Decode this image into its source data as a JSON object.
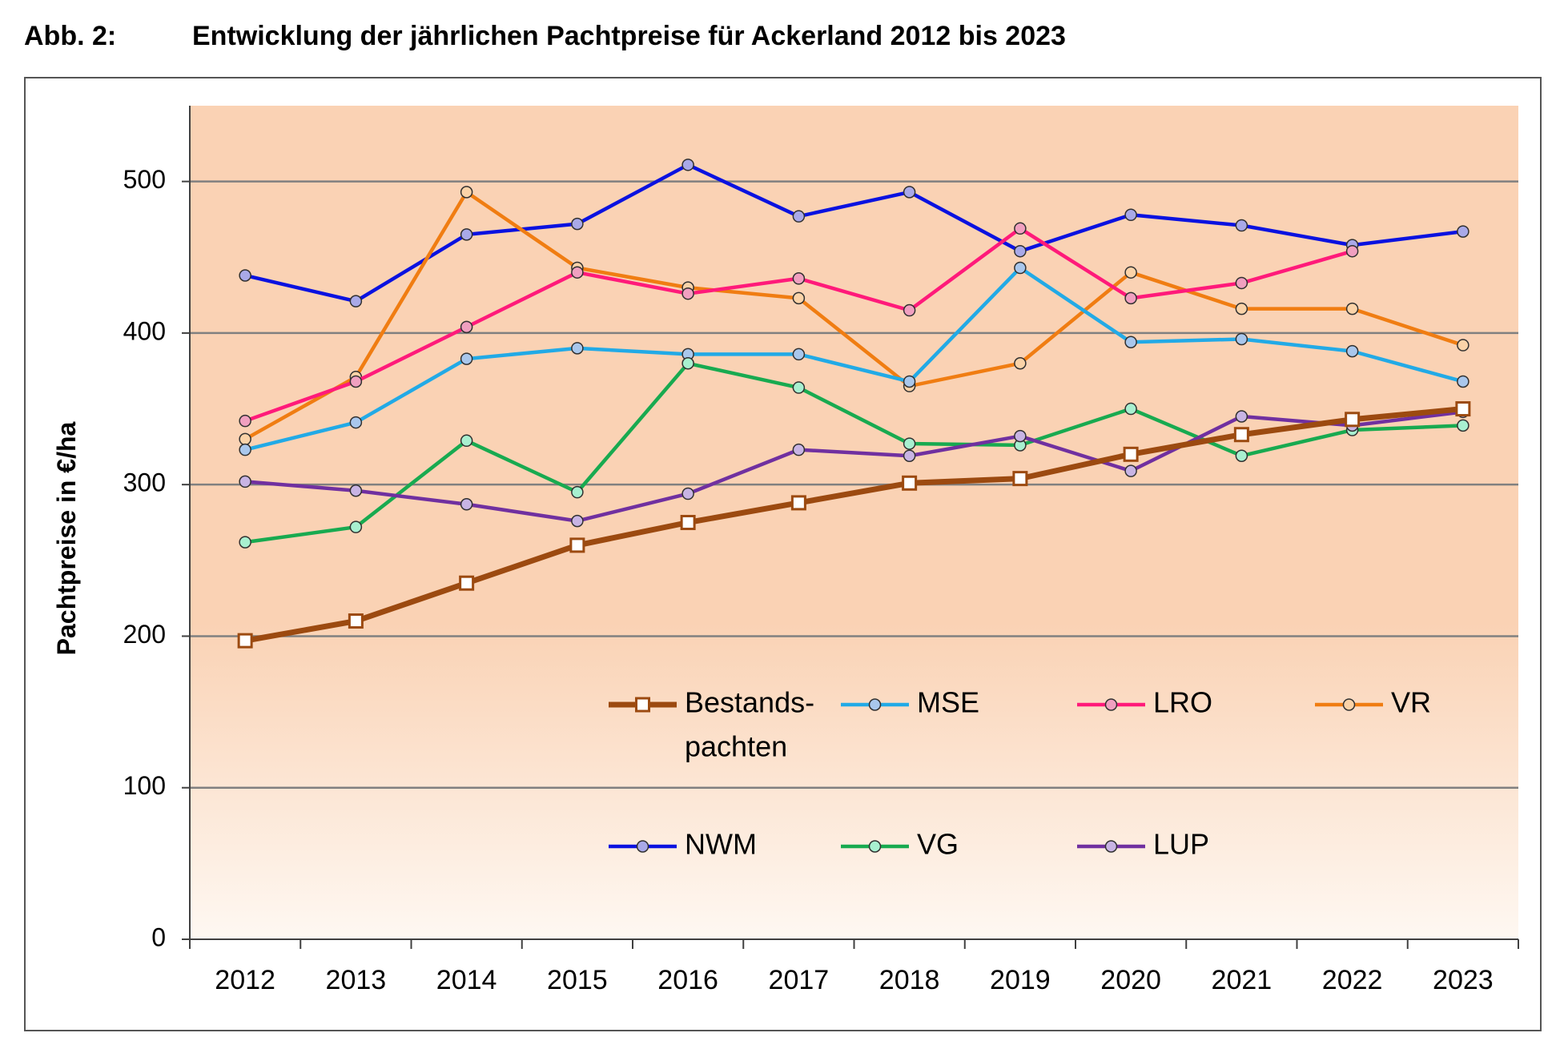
{
  "figure": {
    "label": "Abb. 2:",
    "title": "Entwicklung der jährlichen Pachtpreise für Ackerland 2012 bis 2023"
  },
  "chart_data": {
    "type": "line",
    "title": "Entwicklung der jährlichen Pachtpreise für Ackerland 2012 bis 2023",
    "xlabel": "",
    "ylabel": "Pachtpreise in €/ha",
    "ylim": [
      0,
      550
    ],
    "yticks": [
      0,
      100,
      200,
      300,
      400,
      500
    ],
    "grid": true,
    "legend_position": "inside-bottom",
    "categories": [
      "2012",
      "2013",
      "2014",
      "2015",
      "2016",
      "2017",
      "2018",
      "2019",
      "2020",
      "2021",
      "2022",
      "2023"
    ],
    "series": [
      {
        "name": "Bestands-pachten",
        "legend_lines": [
          "Bestands-",
          "pachten"
        ],
        "color": "#9c4a10",
        "marker": "square",
        "values": [
          197,
          210,
          235,
          260,
          275,
          288,
          301,
          304,
          320,
          333,
          343,
          350
        ]
      },
      {
        "name": "MSE",
        "color": "#22aae6",
        "marker": "circle",
        "marker_fill": "#a9c7ec",
        "values": [
          323,
          341,
          383,
          390,
          386,
          386,
          368,
          443,
          394,
          396,
          388,
          368
        ]
      },
      {
        "name": "LRO",
        "color": "#ff1a7a",
        "marker": "circle",
        "marker_fill": "#f0a0c0",
        "values": [
          342,
          368,
          404,
          440,
          426,
          436,
          415,
          469,
          423,
          433,
          454,
          null
        ]
      },
      {
        "name": "VR",
        "color": "#f07d12",
        "marker": "circle",
        "marker_fill": "#fbd3a8",
        "values": [
          330,
          371,
          493,
          443,
          430,
          423,
          365,
          380,
          440,
          416,
          416,
          392
        ]
      },
      {
        "name": "NWM",
        "color": "#0a12e0",
        "marker": "circle",
        "marker_fill": "#a9a9e8",
        "values": [
          438,
          421,
          465,
          472,
          511,
          477,
          493,
          454,
          478,
          471,
          458,
          467
        ]
      },
      {
        "name": "VG",
        "color": "#18aa50",
        "marker": "circle",
        "marker_fill": "#a8f0d0",
        "values": [
          262,
          272,
          329,
          295,
          380,
          364,
          327,
          326,
          350,
          319,
          336,
          339
        ]
      },
      {
        "name": "LUP",
        "color": "#7030a0",
        "marker": "circle",
        "marker_fill": "#c8b4e4",
        "values": [
          302,
          296,
          287,
          276,
          294,
          323,
          319,
          332,
          309,
          345,
          339,
          348
        ]
      }
    ]
  }
}
